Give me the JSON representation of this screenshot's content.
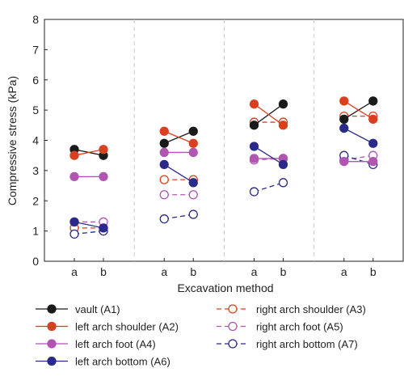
{
  "chart_data": {
    "type": "line",
    "ylabel": "Compressive stress (kPa)",
    "xlabel": "Excavation method",
    "ylim": [
      0,
      8
    ],
    "yticks": [
      "0",
      "1",
      "2",
      "3",
      "4",
      "5",
      "6",
      "7",
      "8"
    ],
    "groups": 4,
    "categories": [
      "a",
      "b"
    ],
    "grid": false,
    "legend_position": "bottom",
    "series": [
      {
        "name": "vault (A1)",
        "color": "#1a1a1a",
        "filled": true,
        "dashed": false,
        "values": [
          [
            3.7,
            3.5
          ],
          [
            3.9,
            4.3
          ],
          [
            4.5,
            5.2
          ],
          [
            4.7,
            5.3
          ]
        ]
      },
      {
        "name": "left arch shoulder (A2)",
        "color": "#d9401f",
        "filled": true,
        "dashed": false,
        "values": [
          [
            3.5,
            3.7
          ],
          [
            4.3,
            3.9
          ],
          [
            5.2,
            4.5
          ],
          [
            5.3,
            4.7
          ]
        ]
      },
      {
        "name": "left arch foot (A4)",
        "color": "#b055b0",
        "filled": true,
        "dashed": false,
        "values": [
          [
            2.8,
            2.8
          ],
          [
            3.6,
            3.6
          ],
          [
            3.4,
            3.4
          ],
          [
            3.3,
            3.3
          ]
        ]
      },
      {
        "name": "left arch bottom (A6)",
        "color": "#2a2a8a",
        "filled": true,
        "dashed": false,
        "values": [
          [
            1.3,
            1.1
          ],
          [
            3.2,
            2.6
          ],
          [
            3.8,
            3.2
          ],
          [
            4.4,
            3.9
          ]
        ]
      },
      {
        "name": "right arch shoulder (A3)",
        "color": "#d9401f",
        "filled": false,
        "dashed": true,
        "values": [
          [
            1.1,
            1.1
          ],
          [
            2.7,
            2.7
          ],
          [
            4.6,
            4.6
          ],
          [
            4.8,
            4.8
          ]
        ]
      },
      {
        "name": "right arch foot (A5)",
        "color": "#b055b0",
        "filled": false,
        "dashed": true,
        "values": [
          [
            1.3,
            1.3
          ],
          [
            2.2,
            2.2
          ],
          [
            3.35,
            3.4
          ],
          [
            3.35,
            3.5
          ]
        ]
      },
      {
        "name": "right arch bottom (A7)",
        "color": "#2a2a8a",
        "filled": false,
        "dashed": true,
        "values": [
          [
            0.9,
            1.0
          ],
          [
            1.4,
            1.55
          ],
          [
            2.3,
            2.6
          ],
          [
            3.5,
            3.2
          ]
        ]
      }
    ]
  }
}
